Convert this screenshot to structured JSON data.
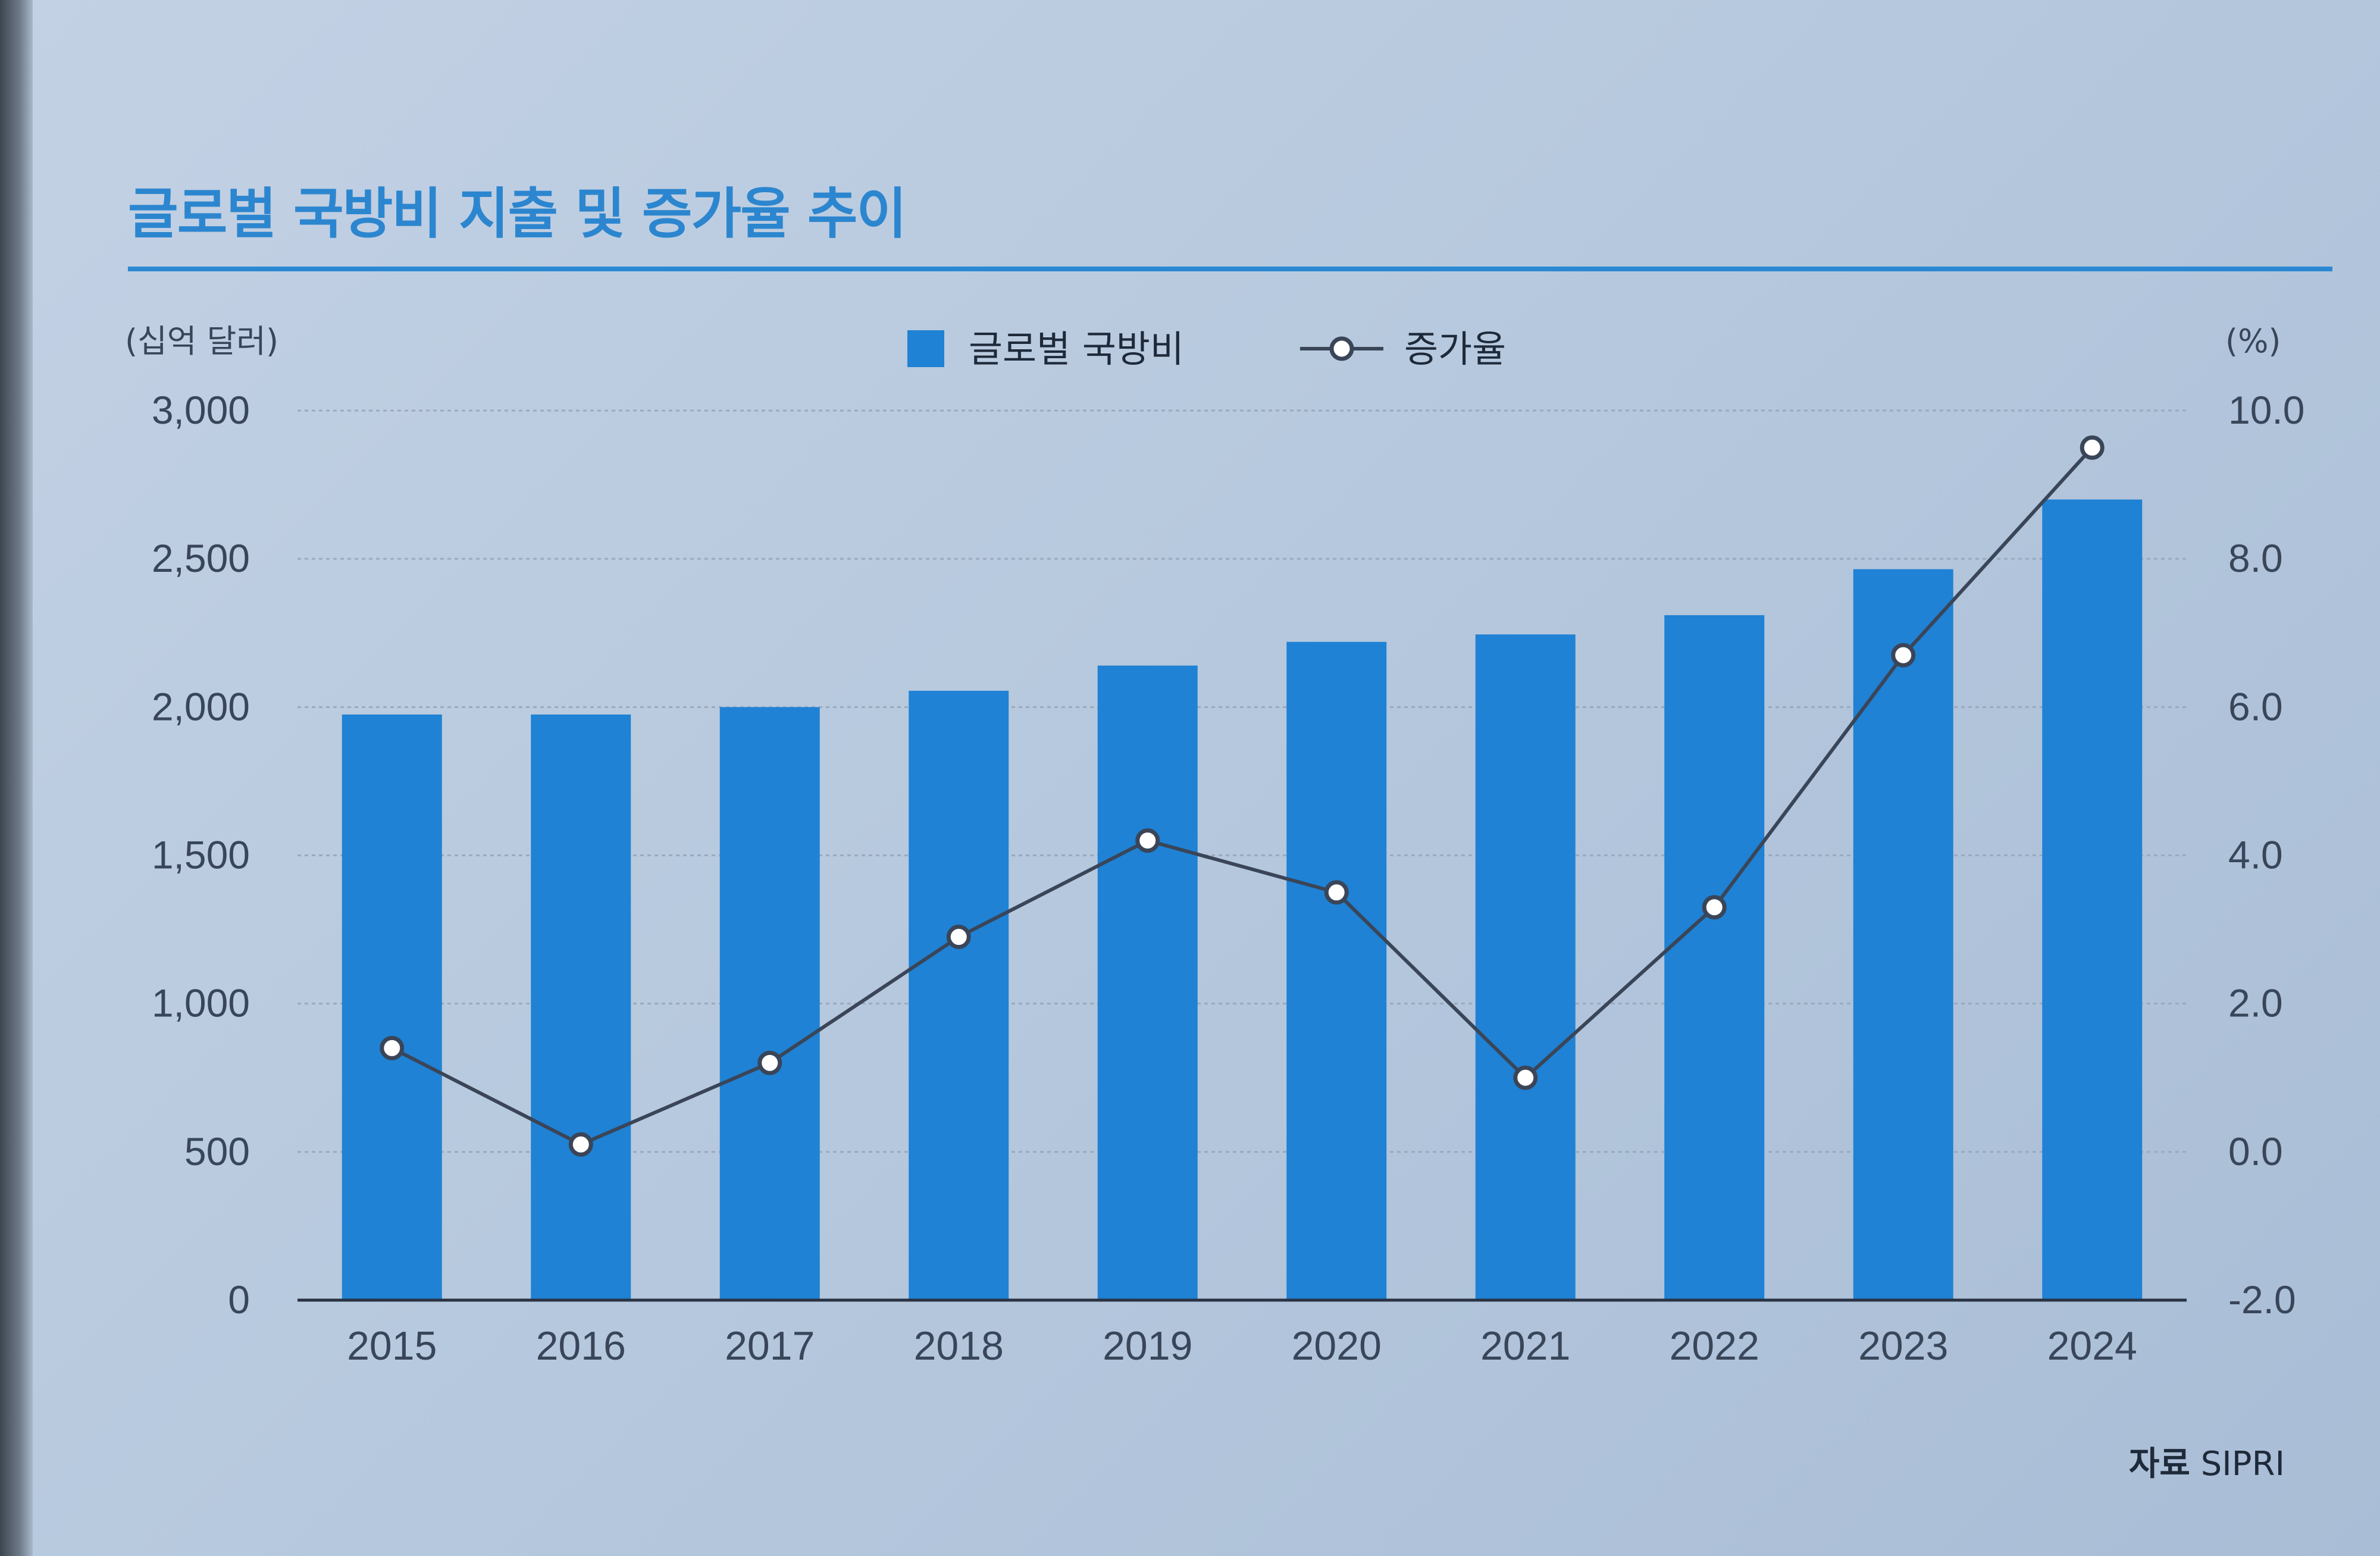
{
  "chart_data": {
    "type": "bar",
    "title": "글로벌 국방비 지출 및 증가율 추이",
    "categories": [
      "2015",
      "2016",
      "2017",
      "2018",
      "2019",
      "2020",
      "2021",
      "2022",
      "2023",
      "2024"
    ],
    "series": [
      {
        "name": "글로벌 국방비",
        "type": "bar",
        "axis": "left",
        "values": [
          1975,
          1975,
          2000,
          2055,
          2140,
          2220,
          2245,
          2310,
          2465,
          2700
        ]
      },
      {
        "name": "증가율",
        "type": "line",
        "axis": "right",
        "values": [
          1.4,
          0.1,
          1.2,
          2.9,
          4.2,
          3.5,
          1.0,
          3.3,
          6.7,
          9.5
        ]
      }
    ],
    "ylabel_left": "(십억 달러)",
    "ylabel_right": "(%)",
    "ylim_left": [
      0,
      3000
    ],
    "ylim_right": [
      -2.0,
      10.0
    ],
    "yticks_left": [
      "0",
      "500",
      "1,000",
      "1,500",
      "2,000",
      "2,500",
      "3,000"
    ],
    "yticks_right": [
      "-2.0",
      "0.0",
      "2.0",
      "4.0",
      "6.0",
      "8.0",
      "10.0"
    ],
    "grid": true,
    "legend_position": "top-center",
    "colors": {
      "bar": "#1f82d4",
      "line": "#3a4558",
      "title": "#2c86cf",
      "grid": "#9aa9bd"
    }
  },
  "source": {
    "label": "자료",
    "value": "SIPRI"
  }
}
